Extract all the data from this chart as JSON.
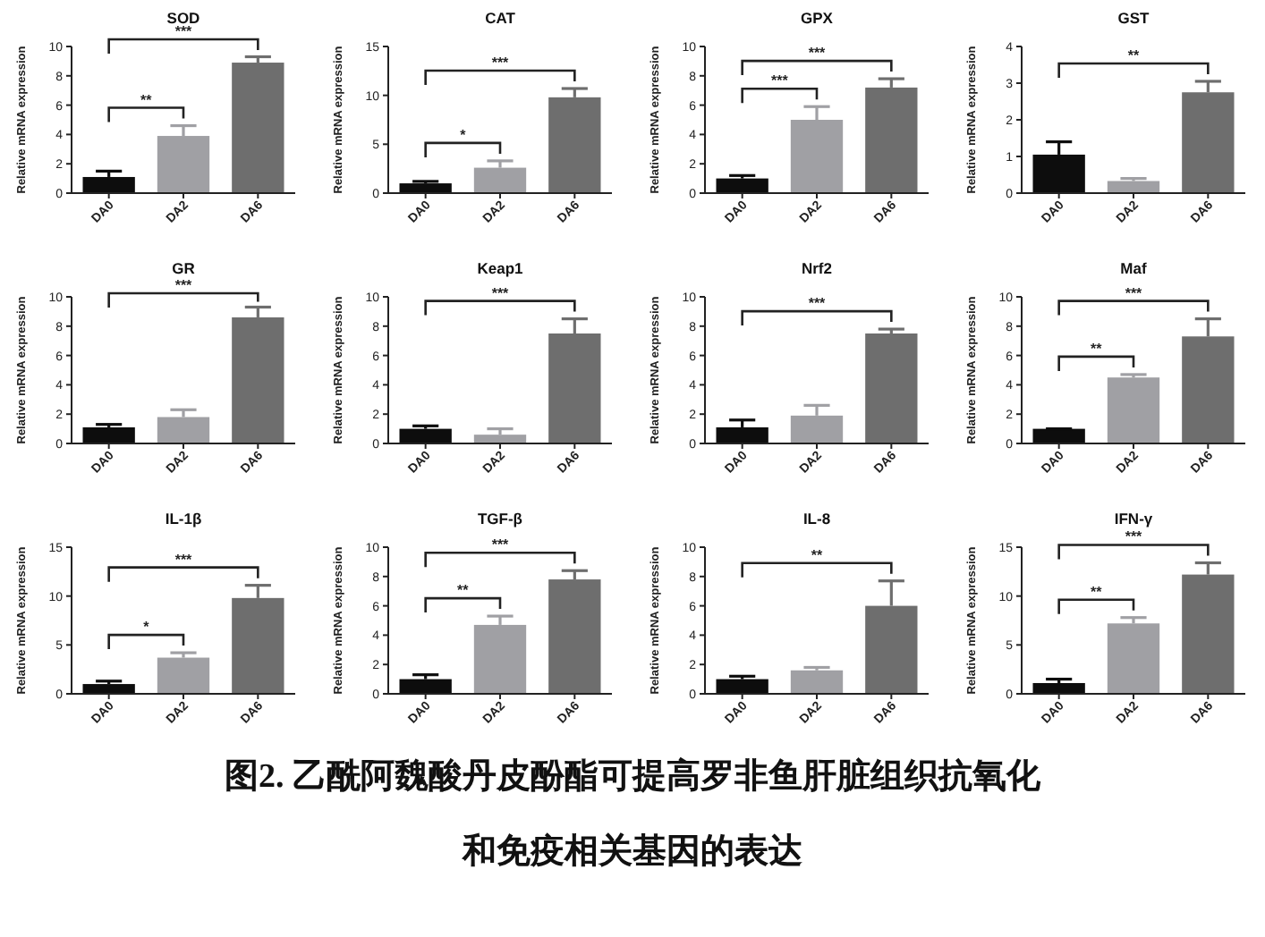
{
  "chart_data": [
    {
      "type": "bar",
      "title": "SOD",
      "ylabel": "Relative mRNA expression",
      "categories": [
        "DA0",
        "DA2",
        "DA6"
      ],
      "values": [
        1.1,
        3.9,
        8.9
      ],
      "errors": [
        [
          1.1,
          1.5
        ],
        [
          3.9,
          4.6
        ],
        [
          8.9,
          9.3
        ]
      ],
      "colors": [
        "#0d0d0d",
        "#a0a0a4",
        "#6e6e6e"
      ],
      "ylim": [
        0,
        10
      ],
      "yticks": [
        0,
        2,
        4,
        6,
        8,
        10
      ],
      "annotations": [
        "**",
        "***"
      ]
    },
    {
      "type": "bar",
      "title": "CAT",
      "ylabel": "Relative mRNA expression",
      "categories": [
        "DA0",
        "DA2",
        "DA6"
      ],
      "values": [
        1.0,
        2.6,
        9.8
      ],
      "errors": [
        [
          1.0,
          1.2
        ],
        [
          2.6,
          3.3
        ],
        [
          9.8,
          10.7
        ]
      ],
      "colors": [
        "#0d0d0d",
        "#a0a0a4",
        "#6e6e6e"
      ],
      "ylim": [
        0,
        15
      ],
      "yticks": [
        0,
        5,
        10,
        15
      ],
      "annotations": [
        "*",
        "***"
      ]
    },
    {
      "type": "bar",
      "title": "GPX",
      "ylabel": "Relative mRNA expression",
      "categories": [
        "DA0",
        "DA2",
        "DA6"
      ],
      "values": [
        1.0,
        5.0,
        7.2
      ],
      "errors": [
        [
          1.0,
          1.2
        ],
        [
          5.0,
          5.9
        ],
        [
          7.2,
          7.8
        ]
      ],
      "colors": [
        "#0d0d0d",
        "#a0a0a4",
        "#6e6e6e"
      ],
      "ylim": [
        0,
        10
      ],
      "yticks": [
        0,
        2,
        4,
        6,
        8,
        10
      ],
      "annotations": [
        "***",
        "***"
      ]
    },
    {
      "type": "bar",
      "title": "GST",
      "ylabel": "Relative mRNA expression",
      "categories": [
        "DA0",
        "DA2",
        "DA6"
      ],
      "values": [
        1.05,
        0.33,
        2.75
      ],
      "errors": [
        [
          1.05,
          1.4
        ],
        [
          0.33,
          0.4
        ],
        [
          2.75,
          3.05
        ]
      ],
      "colors": [
        "#0d0d0d",
        "#a0a0a4",
        "#6e6e6e"
      ],
      "ylim": [
        0,
        4
      ],
      "yticks": [
        0,
        1,
        2,
        3,
        4
      ],
      "annotations": [
        "**"
      ]
    },
    {
      "type": "bar",
      "title": "GR",
      "ylabel": "Relative mRNA expression",
      "categories": [
        "DA0",
        "DA2",
        "DA6"
      ],
      "values": [
        1.1,
        1.8,
        8.6
      ],
      "errors": [
        [
          1.1,
          1.3
        ],
        [
          1.8,
          2.3
        ],
        [
          8.6,
          9.3
        ]
      ],
      "colors": [
        "#0d0d0d",
        "#a0a0a4",
        "#6e6e6e"
      ],
      "ylim": [
        0,
        10
      ],
      "yticks": [
        0,
        2,
        4,
        6,
        8,
        10
      ],
      "annotations": [
        "***"
      ]
    },
    {
      "type": "bar",
      "title": "Keap1",
      "ylabel": "Relative mRNA expression",
      "categories": [
        "DA0",
        "DA2",
        "DA6"
      ],
      "values": [
        1.0,
        0.6,
        7.5
      ],
      "errors": [
        [
          1.0,
          1.2
        ],
        [
          0.6,
          1.0
        ],
        [
          7.5,
          8.5
        ]
      ],
      "colors": [
        "#0d0d0d",
        "#a0a0a4",
        "#6e6e6e"
      ],
      "ylim": [
        0,
        10
      ],
      "yticks": [
        0,
        2,
        4,
        6,
        8,
        10
      ],
      "annotations": [
        "***"
      ]
    },
    {
      "type": "bar",
      "title": "Nrf2",
      "ylabel": "Relative mRNA expression",
      "categories": [
        "DA0",
        "DA2",
        "DA6"
      ],
      "values": [
        1.1,
        1.9,
        7.5
      ],
      "errors": [
        [
          1.1,
          1.6
        ],
        [
          1.9,
          2.6
        ],
        [
          7.5,
          7.8
        ]
      ],
      "colors": [
        "#0d0d0d",
        "#a0a0a4",
        "#6e6e6e"
      ],
      "ylim": [
        0,
        10
      ],
      "yticks": [
        0,
        2,
        4,
        6,
        8,
        10
      ],
      "annotations": [
        "***"
      ]
    },
    {
      "type": "bar",
      "title": "Maf",
      "ylabel": "Relative mRNA expression",
      "categories": [
        "DA0",
        "DA2",
        "DA6"
      ],
      "values": [
        1.0,
        4.5,
        7.3
      ],
      "errors": [
        [
          1.0,
          1.0
        ],
        [
          4.5,
          4.7
        ],
        [
          7.3,
          8.5
        ]
      ],
      "colors": [
        "#0d0d0d",
        "#a0a0a4",
        "#6e6e6e"
      ],
      "ylim": [
        0,
        10
      ],
      "yticks": [
        0,
        2,
        4,
        6,
        8,
        10
      ],
      "annotations": [
        "**",
        "***"
      ]
    },
    {
      "type": "bar",
      "title": "IL-1β",
      "ylabel": "Relative mRNA expression",
      "categories": [
        "DA0",
        "DA2",
        "DA6"
      ],
      "values": [
        1.0,
        3.7,
        9.8
      ],
      "errors": [
        [
          1.0,
          1.3
        ],
        [
          3.7,
          4.2
        ],
        [
          9.8,
          11.1
        ]
      ],
      "colors": [
        "#0d0d0d",
        "#a0a0a4",
        "#6e6e6e"
      ],
      "ylim": [
        0,
        15
      ],
      "yticks": [
        0,
        5,
        10,
        15
      ],
      "annotations": [
        "*",
        "***"
      ]
    },
    {
      "type": "bar",
      "title": "TGF-β",
      "ylabel": "Relative mRNA expression",
      "categories": [
        "DA0",
        "DA2",
        "DA6"
      ],
      "values": [
        1.0,
        4.7,
        7.8
      ],
      "errors": [
        [
          1.0,
          1.3
        ],
        [
          4.7,
          5.3
        ],
        [
          7.8,
          8.4
        ]
      ],
      "colors": [
        "#0d0d0d",
        "#a0a0a4",
        "#6e6e6e"
      ],
      "ylim": [
        0,
        10
      ],
      "yticks": [
        0,
        2,
        4,
        6,
        8,
        10
      ],
      "annotations": [
        "**",
        "***"
      ]
    },
    {
      "type": "bar",
      "title": "IL-8",
      "ylabel": "Relative mRNA expression",
      "categories": [
        "DA0",
        "DA2",
        "DA6"
      ],
      "values": [
        1.0,
        1.6,
        6.0
      ],
      "errors": [
        [
          1.0,
          1.2
        ],
        [
          1.6,
          1.8
        ],
        [
          6.0,
          7.7
        ]
      ],
      "colors": [
        "#0d0d0d",
        "#a0a0a4",
        "#6e6e6e"
      ],
      "ylim": [
        0,
        10
      ],
      "yticks": [
        0,
        2,
        4,
        6,
        8,
        10
      ],
      "annotations": [
        "**"
      ]
    },
    {
      "type": "bar",
      "title": "IFN-γ",
      "ylabel": "Relative mRNA expression",
      "categories": [
        "DA0",
        "DA2",
        "DA6"
      ],
      "values": [
        1.1,
        7.2,
        12.2
      ],
      "errors": [
        [
          1.1,
          1.5
        ],
        [
          7.2,
          7.8
        ],
        [
          12.2,
          13.4
        ]
      ],
      "colors": [
        "#0d0d0d",
        "#a0a0a4",
        "#6e6e6e"
      ],
      "ylim": [
        0,
        15
      ],
      "yticks": [
        0,
        5,
        10,
        15
      ],
      "annotations": [
        "**",
        "***",
        "图2. 乙酰阿魏酸丹皮酚酯可提高罗非鱼肝脏组织抗氧化",
        "和免疫相关基因的表达"
      ]
    }
  ]
}
